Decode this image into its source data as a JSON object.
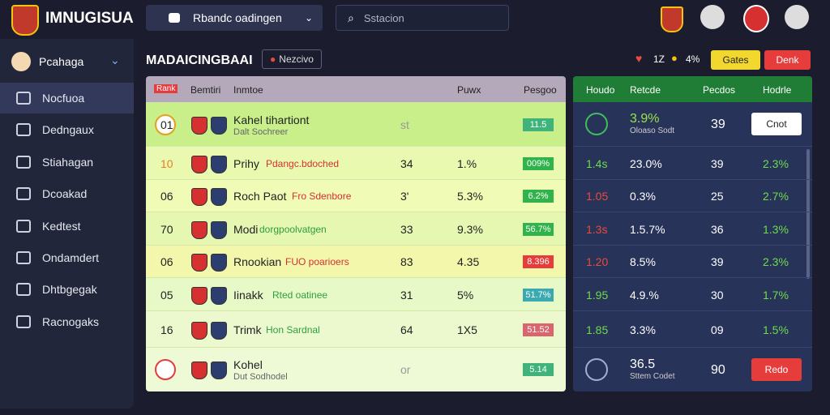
{
  "header": {
    "logo": "IMNUGISUA",
    "dropdown": "Rbandc oadingen",
    "search": "Sstacion"
  },
  "sidebar": {
    "user": "Pcahaga",
    "items": [
      "Nocfuoa",
      "Dedngaux",
      "Stiahagan",
      "Dcoakad",
      "Kedtest",
      "Ondamdert",
      "Dhtbgegak",
      "Racnogaks"
    ]
  },
  "toolbar": {
    "title": "MADAICINGBAAI",
    "tag": "Nezcivo",
    "likes": "1Z",
    "rate": "4%",
    "buttons": [
      "Gates",
      "Denk"
    ]
  },
  "table": {
    "columns": [
      "Rank",
      "Bemtiri",
      "Inmtoe",
      "Puwx",
      "Pesgoo"
    ],
    "rows": [
      [
        "01",
        "Kahel tihartiont",
        "Dalt Sochreer",
        "st",
        "",
        "11.5"
      ],
      [
        "10",
        "Prihy",
        "Pdangc.bdoched",
        "34",
        "1.%",
        "009%"
      ],
      [
        "06",
        "Roch Paot",
        "Fro Sdenbore",
        "3'",
        "5.3%",
        "6.2%"
      ],
      [
        "70",
        "Modi",
        "dorgpoolvatgen",
        "33",
        "9.3%",
        "56.7%"
      ],
      [
        "06",
        "Rnookian",
        "FUO poarioers",
        "83",
        "4.35",
        "8.396"
      ],
      [
        "05",
        "Iinakk",
        "Rted oatinee",
        "31",
        "5%",
        "51.7%"
      ],
      [
        "16",
        "Trimk",
        "Hon Sardnal",
        "64",
        "1X5",
        "51.52"
      ],
      [
        "",
        "Kohel",
        "Dut Sodhodel",
        "or",
        "",
        "5.14"
      ]
    ]
  },
  "panel": {
    "columns": [
      "Houdo",
      "Retcde",
      "Pecdos",
      "Hodrle"
    ],
    "rows": [
      [
        "",
        "3.9%",
        "Oloaso Sodt",
        "39",
        "Cnot"
      ],
      [
        "1.4s",
        "23.0%",
        "",
        "39",
        "2.3%"
      ],
      [
        "1.05",
        "0.3%",
        "",
        "25",
        "2.7%"
      ],
      [
        "1.3s",
        "1.5.7%",
        "",
        "36",
        "1.3%"
      ],
      [
        "1.20",
        "8.5%",
        "",
        "39",
        "2.3%"
      ],
      [
        "1.95",
        "4.9.%",
        "",
        "30",
        "1.7%"
      ],
      [
        "1.85",
        "3.3%",
        "",
        "09",
        "1.5%"
      ],
      [
        "",
        "36.5",
        "Sttem Codet",
        "90",
        "Redo"
      ]
    ]
  }
}
